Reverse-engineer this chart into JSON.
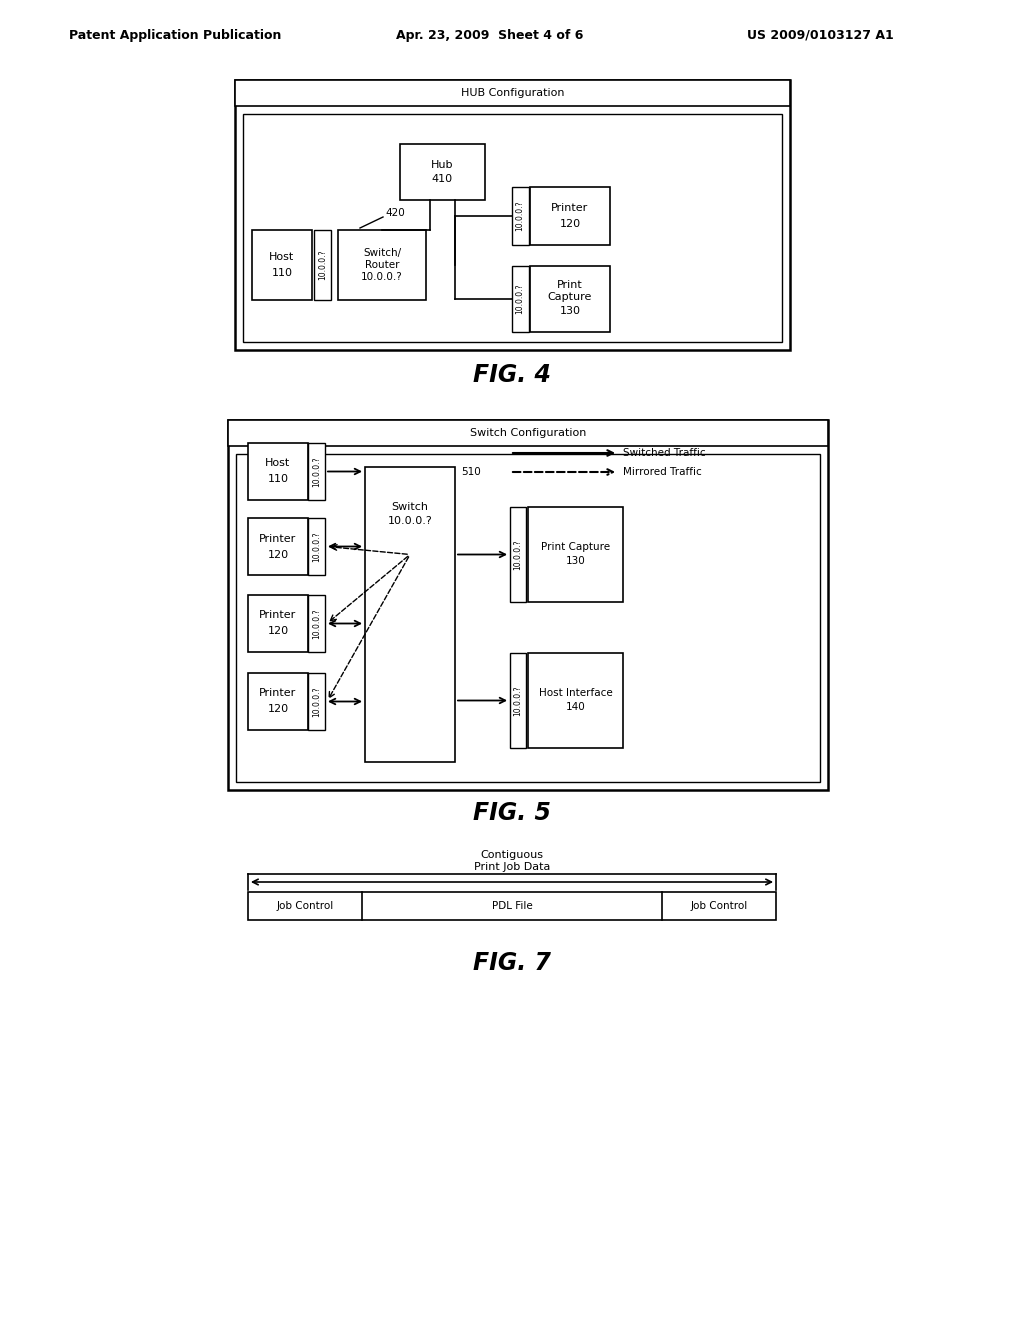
{
  "header_left": "Patent Application Publication",
  "header_mid": "Apr. 23, 2009  Sheet 4 of 6",
  "header_right": "US 2009/0103127 A1",
  "fig4_title": "FIG. 4",
  "fig5_title": "FIG. 5",
  "fig7_title": "FIG. 7",
  "hub_config_title": "HUB Configuration",
  "switch_config_title": "Switch Configuration",
  "bg_color": "#ffffff"
}
